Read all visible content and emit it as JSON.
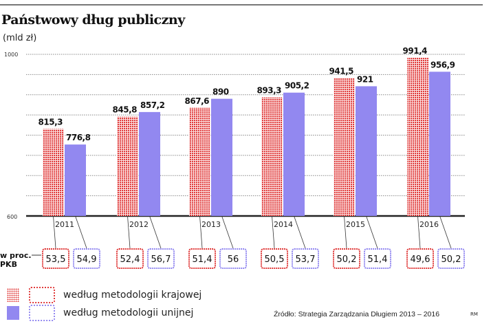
{
  "title": "Państwowy dług publiczny",
  "unit": "(mld zł)",
  "chart_data": {
    "type": "bar",
    "categories": [
      "2011",
      "2012",
      "2013",
      "2014",
      "2015",
      "2016"
    ],
    "series": [
      {
        "name": "według metodologii krajowej",
        "values": [
          815.3,
          845.8,
          867.6,
          893.3,
          941.5,
          991.4
        ],
        "value_labels": [
          "815,3",
          "845,8",
          "867,6",
          "893,3",
          "941,5",
          "991,4"
        ],
        "pkb": [
          "53,5",
          "52,4",
          "51,4",
          "50,5",
          "50,2",
          "49,6"
        ],
        "color": "#e03a3a"
      },
      {
        "name": "według metodologii unijnej",
        "values": [
          776.8,
          857.2,
          890,
          905.2,
          921,
          956.9
        ],
        "value_labels": [
          "776,8",
          "857,2",
          "890",
          "905,2",
          "921",
          "956,9"
        ],
        "pkb": [
          "54,9",
          "56,7",
          "56",
          "53,7",
          "51,4",
          "50,2"
        ],
        "color": "#9288f0"
      }
    ],
    "ylim": [
      600,
      1000
    ],
    "yticks": [
      "600",
      "1000"
    ],
    "grid": true,
    "pkb_label": [
      "w proc.",
      "PKB"
    ],
    "legend_position": "bottom-left"
  },
  "source": "Źródło: Strategia Zarządzania Długiem 2013 – 2016",
  "author": "RM"
}
